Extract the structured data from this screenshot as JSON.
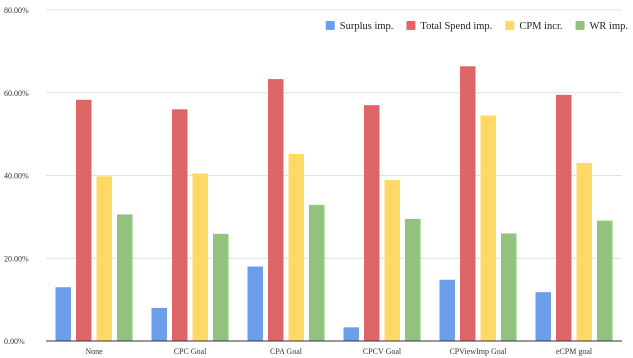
{
  "chart_data": {
    "type": "bar",
    "title": "",
    "xlabel": "",
    "ylabel": "",
    "categories": [
      "None",
      "CPC Goal",
      "CPA Goal",
      "CPCV Goal",
      "CPViewImp Goal",
      "eCPM goal"
    ],
    "series": [
      {
        "name": "Surplus imp.",
        "color": "#6d9eeb",
        "values": [
          13.0,
          8.0,
          18.0,
          3.3,
          14.8,
          11.8
        ]
      },
      {
        "name": "Total Spend imp.",
        "color": "#e06666",
        "values": [
          58.3,
          56.0,
          63.3,
          57.0,
          66.4,
          59.5
        ]
      },
      {
        "name": "CPM incr.",
        "color": "#ffd966",
        "values": [
          39.8,
          40.5,
          45.2,
          38.9,
          54.5,
          43.0
        ]
      },
      {
        "name": "WR imp.",
        "color": "#93c47d",
        "values": [
          30.6,
          25.9,
          32.9,
          29.5,
          26.0,
          29.1
        ]
      }
    ],
    "ylim": [
      0,
      80
    ],
    "yticks": [
      0,
      20,
      40,
      60,
      80
    ],
    "ytick_labels": [
      "0.00%",
      "20.00%",
      "40.00%",
      "60.00%",
      "80.00%"
    ],
    "grid": true,
    "legend_position": "top-right"
  }
}
